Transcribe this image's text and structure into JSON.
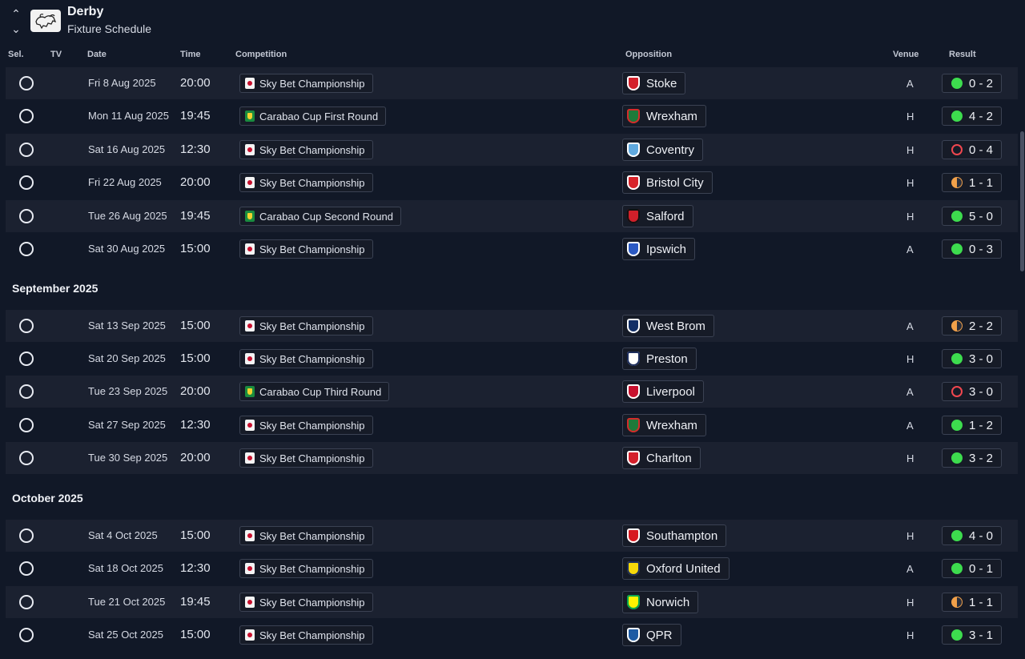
{
  "header": {
    "club_name": "Derby",
    "subtitle": "Fixture Schedule",
    "up_icon": "chevron-up",
    "down_icon": "chevron-down"
  },
  "columns": {
    "sel": "Sel.",
    "tv": "TV",
    "date": "Date",
    "time": "Time",
    "competition": "Competition",
    "opposition": "Opposition",
    "venue": "Venue",
    "result": "Result"
  },
  "months": [
    {
      "label": "September 2025"
    },
    {
      "label": "October 2025"
    }
  ],
  "fixtures": [
    {
      "date": "Fri 8 Aug 2025",
      "time": "20:00",
      "competition": "Sky Bet Championship",
      "comp_type": "champ",
      "opposition": "Stoke",
      "badge_color": "#d4202b",
      "badge_accent": "#ffffff",
      "venue": "A",
      "result": "0 - 2",
      "outcome": "win"
    },
    {
      "date": "Mon 11 Aug 2025",
      "time": "19:45",
      "competition": "Carabao Cup First Round",
      "comp_type": "cup",
      "opposition": "Wrexham",
      "badge_color": "#1d7a3a",
      "badge_accent": "#d52b2b",
      "venue": "H",
      "result": "4 - 2",
      "outcome": "win"
    },
    {
      "date": "Sat 16 Aug 2025",
      "time": "12:30",
      "competition": "Sky Bet Championship",
      "comp_type": "champ",
      "opposition": "Coventry",
      "badge_color": "#5fa9df",
      "badge_accent": "#ffffff",
      "venue": "H",
      "result": "0 - 4",
      "outcome": "loss"
    },
    {
      "date": "Fri 22 Aug 2025",
      "time": "20:00",
      "competition": "Sky Bet Championship",
      "comp_type": "champ",
      "opposition": "Bristol City",
      "badge_color": "#d8232a",
      "badge_accent": "#ffffff",
      "venue": "H",
      "result": "1 - 1",
      "outcome": "draw"
    },
    {
      "date": "Tue 26 Aug 2025",
      "time": "19:45",
      "competition": "Carabao Cup Second Round",
      "comp_type": "cup",
      "opposition": "Salford",
      "badge_color": "#d0202a",
      "badge_accent": "#111111",
      "venue": "H",
      "result": "5 - 0",
      "outcome": "win"
    },
    {
      "date": "Sat 30 Aug 2025",
      "time": "15:00",
      "competition": "Sky Bet Championship",
      "comp_type": "champ",
      "opposition": "Ipswich",
      "badge_color": "#2b59c3",
      "badge_accent": "#ffffff",
      "venue": "A",
      "result": "0 - 3",
      "outcome": "win"
    },
    {
      "date": "Sat 13 Sep 2025",
      "time": "15:00",
      "competition": "Sky Bet Championship",
      "comp_type": "champ",
      "opposition": "West Brom",
      "badge_color": "#122f67",
      "badge_accent": "#ffffff",
      "venue": "A",
      "result": "2 - 2",
      "outcome": "draw"
    },
    {
      "date": "Sat 20 Sep 2025",
      "time": "15:00",
      "competition": "Sky Bet Championship",
      "comp_type": "champ",
      "opposition": "Preston",
      "badge_color": "#ffffff",
      "badge_accent": "#1b2c5c",
      "venue": "H",
      "result": "3 - 0",
      "outcome": "win"
    },
    {
      "date": "Tue 23 Sep 2025",
      "time": "20:00",
      "competition": "Carabao Cup Third Round",
      "comp_type": "cup",
      "opposition": "Liverpool",
      "badge_color": "#c8102e",
      "badge_accent": "#ffffff",
      "venue": "A",
      "result": "3 - 0",
      "outcome": "loss"
    },
    {
      "date": "Sat 27 Sep 2025",
      "time": "12:30",
      "competition": "Sky Bet Championship",
      "comp_type": "champ",
      "opposition": "Wrexham",
      "badge_color": "#1d7a3a",
      "badge_accent": "#d52b2b",
      "venue": "A",
      "result": "1 - 2",
      "outcome": "win"
    },
    {
      "date": "Tue 30 Sep 2025",
      "time": "20:00",
      "competition": "Sky Bet Championship",
      "comp_type": "champ",
      "opposition": "Charlton",
      "badge_color": "#d4202b",
      "badge_accent": "#ffffff",
      "venue": "H",
      "result": "3 - 2",
      "outcome": "win"
    },
    {
      "date": "Sat 4 Oct 2025",
      "time": "15:00",
      "competition": "Sky Bet Championship",
      "comp_type": "champ",
      "opposition": "Southampton",
      "badge_color": "#d71920",
      "badge_accent": "#ffffff",
      "venue": "H",
      "result": "4 - 0",
      "outcome": "win"
    },
    {
      "date": "Sat 18 Oct 2025",
      "time": "12:30",
      "competition": "Sky Bet Championship",
      "comp_type": "champ",
      "opposition": "Oxford United",
      "badge_color": "#f6d80a",
      "badge_accent": "#1b2c5c",
      "venue": "A",
      "result": "0 - 1",
      "outcome": "win"
    },
    {
      "date": "Tue 21 Oct 2025",
      "time": "19:45",
      "competition": "Sky Bet Championship",
      "comp_type": "champ",
      "opposition": "Norwich",
      "badge_color": "#fff200",
      "badge_accent": "#00a650",
      "venue": "H",
      "result": "1 - 1",
      "outcome": "draw"
    },
    {
      "date": "Sat 25 Oct 2025",
      "time": "15:00",
      "competition": "Sky Bet Championship",
      "comp_type": "champ",
      "opposition": "QPR",
      "badge_color": "#1d5ba4",
      "badge_accent": "#ffffff",
      "venue": "H",
      "result": "3 - 1",
      "outcome": "win"
    }
  ]
}
